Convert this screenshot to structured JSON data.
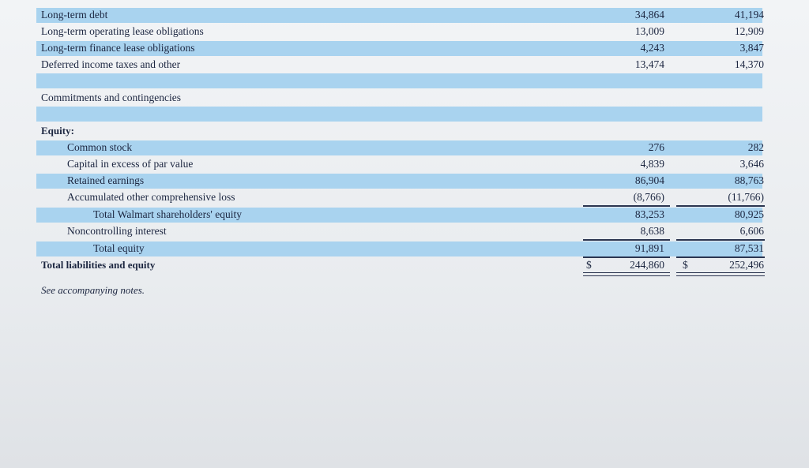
{
  "rows": [
    {
      "label": "Long-term debt",
      "values": [
        "34,864",
        "41,194"
      ]
    },
    {
      "label": "Long-term operating lease obligations",
      "values": [
        "13,009",
        "12,909"
      ]
    },
    {
      "label": "Long-term finance lease obligations",
      "values": [
        "4,243",
        "3,847"
      ]
    },
    {
      "label": "Deferred income taxes and other",
      "values": [
        "13,474",
        "14,370"
      ]
    },
    {
      "label": "Commitments and contingencies"
    },
    {
      "label": "Equity:"
    },
    {
      "label": "Common stock",
      "values": [
        "276",
        "282"
      ]
    },
    {
      "label": "Capital in excess of par value",
      "values": [
        "4,839",
        "3,646"
      ]
    },
    {
      "label": "Retained earnings",
      "values": [
        "86,904",
        "88,763"
      ]
    },
    {
      "label": "Accumulated other comprehensive loss",
      "values": [
        "(8,766)",
        "(11,766)"
      ]
    },
    {
      "label": "Total Walmart shareholders' equity",
      "values": [
        "83,253",
        "80,925"
      ]
    },
    {
      "label": "Noncontrolling interest",
      "values": [
        "8,638",
        "6,606"
      ]
    },
    {
      "label": "Total equity",
      "values": [
        "91,891",
        "87,531"
      ]
    },
    {
      "label": "Total liabilities and equity",
      "symbols": [
        "$",
        "$"
      ],
      "values": [
        "244,860",
        "252,496"
      ]
    }
  ],
  "note": "See accompanying notes."
}
